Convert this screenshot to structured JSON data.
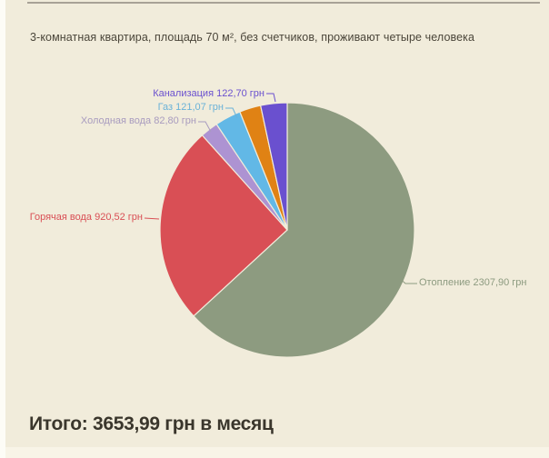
{
  "page": {
    "background_color": "#fdfcf6",
    "panel_color": "#f1ecdb",
    "footer_strip_color": "#f8f4e7",
    "rule_color": "#a8a296",
    "title": "3-комнатная квартира,  площадь 70 м²,  без счетчиков,  проживают четыре человека",
    "title_color": "#4b463a",
    "total_label": "Итого: 3653,99 грн в месяц",
    "total_color": "#3a362c"
  },
  "chart_data": {
    "type": "pie",
    "unit": "грн",
    "total_value": 3653.99,
    "direction": "clockwise",
    "start_angle_deg": 0,
    "legend": "none",
    "slices": [
      {
        "key": "heating",
        "label": "Отопление",
        "value": 2307.9,
        "value_text": "2307,90",
        "display": "Отопление 2307,90 грн",
        "color": "#8d9b80",
        "label_color": "#8d9b80"
      },
      {
        "key": "hot-water",
        "label": "Горячая вода",
        "value": 920.52,
        "value_text": "920,52",
        "display": "Горячая вода 920,52 грн",
        "color": "#d94f55",
        "label_color": "#d94f55"
      },
      {
        "key": "cold-water",
        "label": "Холодная вода",
        "value": 82.8,
        "value_text": "82,80",
        "display": "Холодная вода 82,80 грн",
        "color": "#ad93d2",
        "label_color": "#a89bbf"
      },
      {
        "key": "gas",
        "label": "Газ",
        "value": 121.07,
        "value_text": "121,07",
        "display": "Газ 121,07 грн",
        "color": "#62b8e6",
        "label_color": "#6ab2d8"
      },
      {
        "key": "unlabeled",
        "label": "",
        "value": 99.0,
        "value_text": "",
        "display": "",
        "color": "#e08214",
        "label_color": "#e08214",
        "estimated_from_angle": true
      },
      {
        "key": "sewerage",
        "label": "Канализация",
        "value": 122.7,
        "value_text": "122,70",
        "display": "Канализация 122,70 грн",
        "color": "#6a50cf",
        "label_color": "#6a50cf"
      }
    ]
  }
}
